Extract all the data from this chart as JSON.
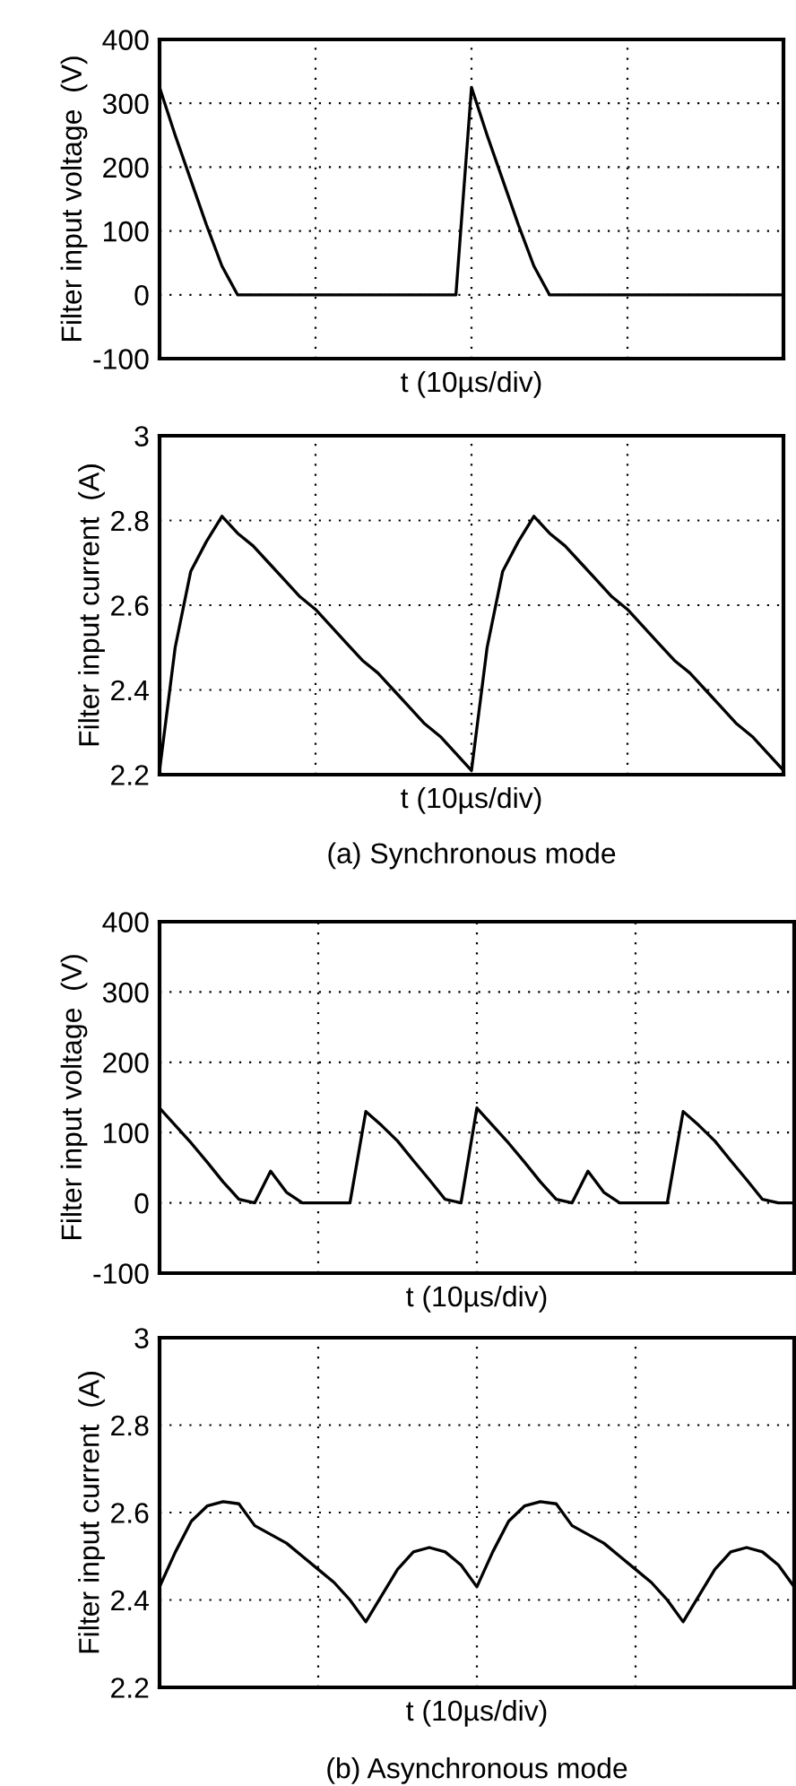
{
  "chart_data": [
    {
      "type": "line",
      "ylabel": "Filter input voltage  (V)",
      "xlabel": "t (10µs/div)",
      "categories": [
        null,
        null,
        null,
        null,
        null,
        null,
        null,
        null,
        null,
        null,
        null,
        null,
        null,
        null,
        null,
        null,
        null,
        null,
        null,
        null,
        null,
        null,
        null,
        null,
        null,
        null,
        null,
        null,
        null,
        null,
        null,
        null,
        null,
        null,
        null,
        null,
        null,
        null,
        null,
        null,
        null
      ],
      "ylim": [
        -100,
        400
      ],
      "yticks": [
        -100,
        0,
        100,
        200,
        300,
        400
      ],
      "tick_labels": "y",
      "grid": true,
      "line_style": "solid",
      "series": [
        {
          "color": "#000000",
          "values": [
            325,
            250,
            180,
            110,
            45,
            0,
            0,
            0,
            0,
            0,
            0,
            0,
            0,
            0,
            0,
            0,
            0,
            0,
            0,
            0,
            325,
            250,
            180,
            110,
            45,
            0,
            0,
            0,
            0,
            0,
            0,
            0,
            0,
            0,
            0,
            0,
            0,
            0,
            0,
            0,
            0
          ]
        }
      ]
    },
    {
      "type": "line",
      "ylabel": "Filter input current  (A)",
      "xlabel": "t (10µs/div)",
      "annotations": [
        "(a) Synchronous mode"
      ],
      "categories": [
        null,
        null,
        null,
        null,
        null,
        null,
        null,
        null,
        null,
        null,
        null,
        null,
        null,
        null,
        null,
        null,
        null,
        null,
        null,
        null,
        null,
        null,
        null,
        null,
        null,
        null,
        null,
        null,
        null,
        null,
        null,
        null,
        null,
        null,
        null,
        null,
        null,
        null,
        null,
        null,
        null
      ],
      "ylim": [
        2.2,
        3
      ],
      "yticks": [
        2.2,
        2.4,
        2.6,
        2.8,
        3
      ],
      "tick_labels": "y",
      "grid": true,
      "line_style": "solid",
      "series": [
        {
          "color": "#000000",
          "values": [
            2.21,
            2.5,
            2.68,
            2.75,
            2.81,
            2.77,
            2.74,
            2.7,
            2.66,
            2.62,
            2.59,
            2.55,
            2.51,
            2.47,
            2.44,
            2.4,
            2.36,
            2.32,
            2.29,
            2.25,
            2.21,
            2.5,
            2.68,
            2.75,
            2.81,
            2.77,
            2.74,
            2.7,
            2.66,
            2.62,
            2.59,
            2.55,
            2.51,
            2.47,
            2.44,
            2.4,
            2.36,
            2.32,
            2.29,
            2.25,
            2.21
          ]
        }
      ]
    },
    {
      "type": "line",
      "ylabel": "Filter input voltage  (V)",
      "xlabel": "t (10µs/div)",
      "categories": [
        null,
        null,
        null,
        null,
        null,
        null,
        null,
        null,
        null,
        null,
        null,
        null,
        null,
        null,
        null,
        null,
        null,
        null,
        null,
        null,
        null,
        null,
        null,
        null,
        null,
        null,
        null,
        null,
        null,
        null,
        null,
        null,
        null,
        null,
        null,
        null,
        null,
        null,
        null,
        null,
        null
      ],
      "ylim": [
        -100,
        400
      ],
      "yticks": [
        -100,
        0,
        100,
        200,
        300,
        400
      ],
      "tick_labels": "y",
      "grid": true,
      "line_style": "solid",
      "series": [
        {
          "color": "#000000",
          "values": [
            135,
            110,
            85,
            58,
            30,
            5,
            0,
            45,
            15,
            0,
            0,
            0,
            0,
            130,
            110,
            88,
            60,
            33,
            5,
            0,
            135,
            110,
            85,
            58,
            30,
            5,
            0,
            45,
            15,
            0,
            0,
            0,
            0,
            130,
            110,
            88,
            60,
            33,
            5,
            0,
            0
          ]
        }
      ]
    },
    {
      "type": "line",
      "ylabel": "Filter input current  (A)",
      "xlabel": "t (10µs/div)",
      "annotations": [
        "(b) Asynchronous mode"
      ],
      "categories": [
        null,
        null,
        null,
        null,
        null,
        null,
        null,
        null,
        null,
        null,
        null,
        null,
        null,
        null,
        null,
        null,
        null,
        null,
        null,
        null,
        null,
        null,
        null,
        null,
        null,
        null,
        null,
        null,
        null,
        null,
        null,
        null,
        null,
        null,
        null,
        null,
        null,
        null,
        null,
        null,
        null
      ],
      "ylim": [
        2.2,
        3
      ],
      "yticks": [
        2.2,
        2.4,
        2.6,
        2.8,
        3
      ],
      "tick_labels": "y",
      "grid": true,
      "line_style": "solid",
      "series": [
        {
          "color": "#000000",
          "values": [
            2.43,
            2.51,
            2.58,
            2.615,
            2.625,
            2.62,
            2.57,
            2.55,
            2.53,
            2.5,
            2.47,
            2.44,
            2.4,
            2.35,
            2.41,
            2.47,
            2.51,
            2.52,
            2.51,
            2.48,
            2.43,
            2.51,
            2.58,
            2.615,
            2.625,
            2.62,
            2.57,
            2.55,
            2.53,
            2.5,
            2.47,
            2.44,
            2.4,
            2.35,
            2.41,
            2.47,
            2.51,
            2.52,
            2.51,
            2.48,
            2.43
          ]
        }
      ]
    }
  ]
}
